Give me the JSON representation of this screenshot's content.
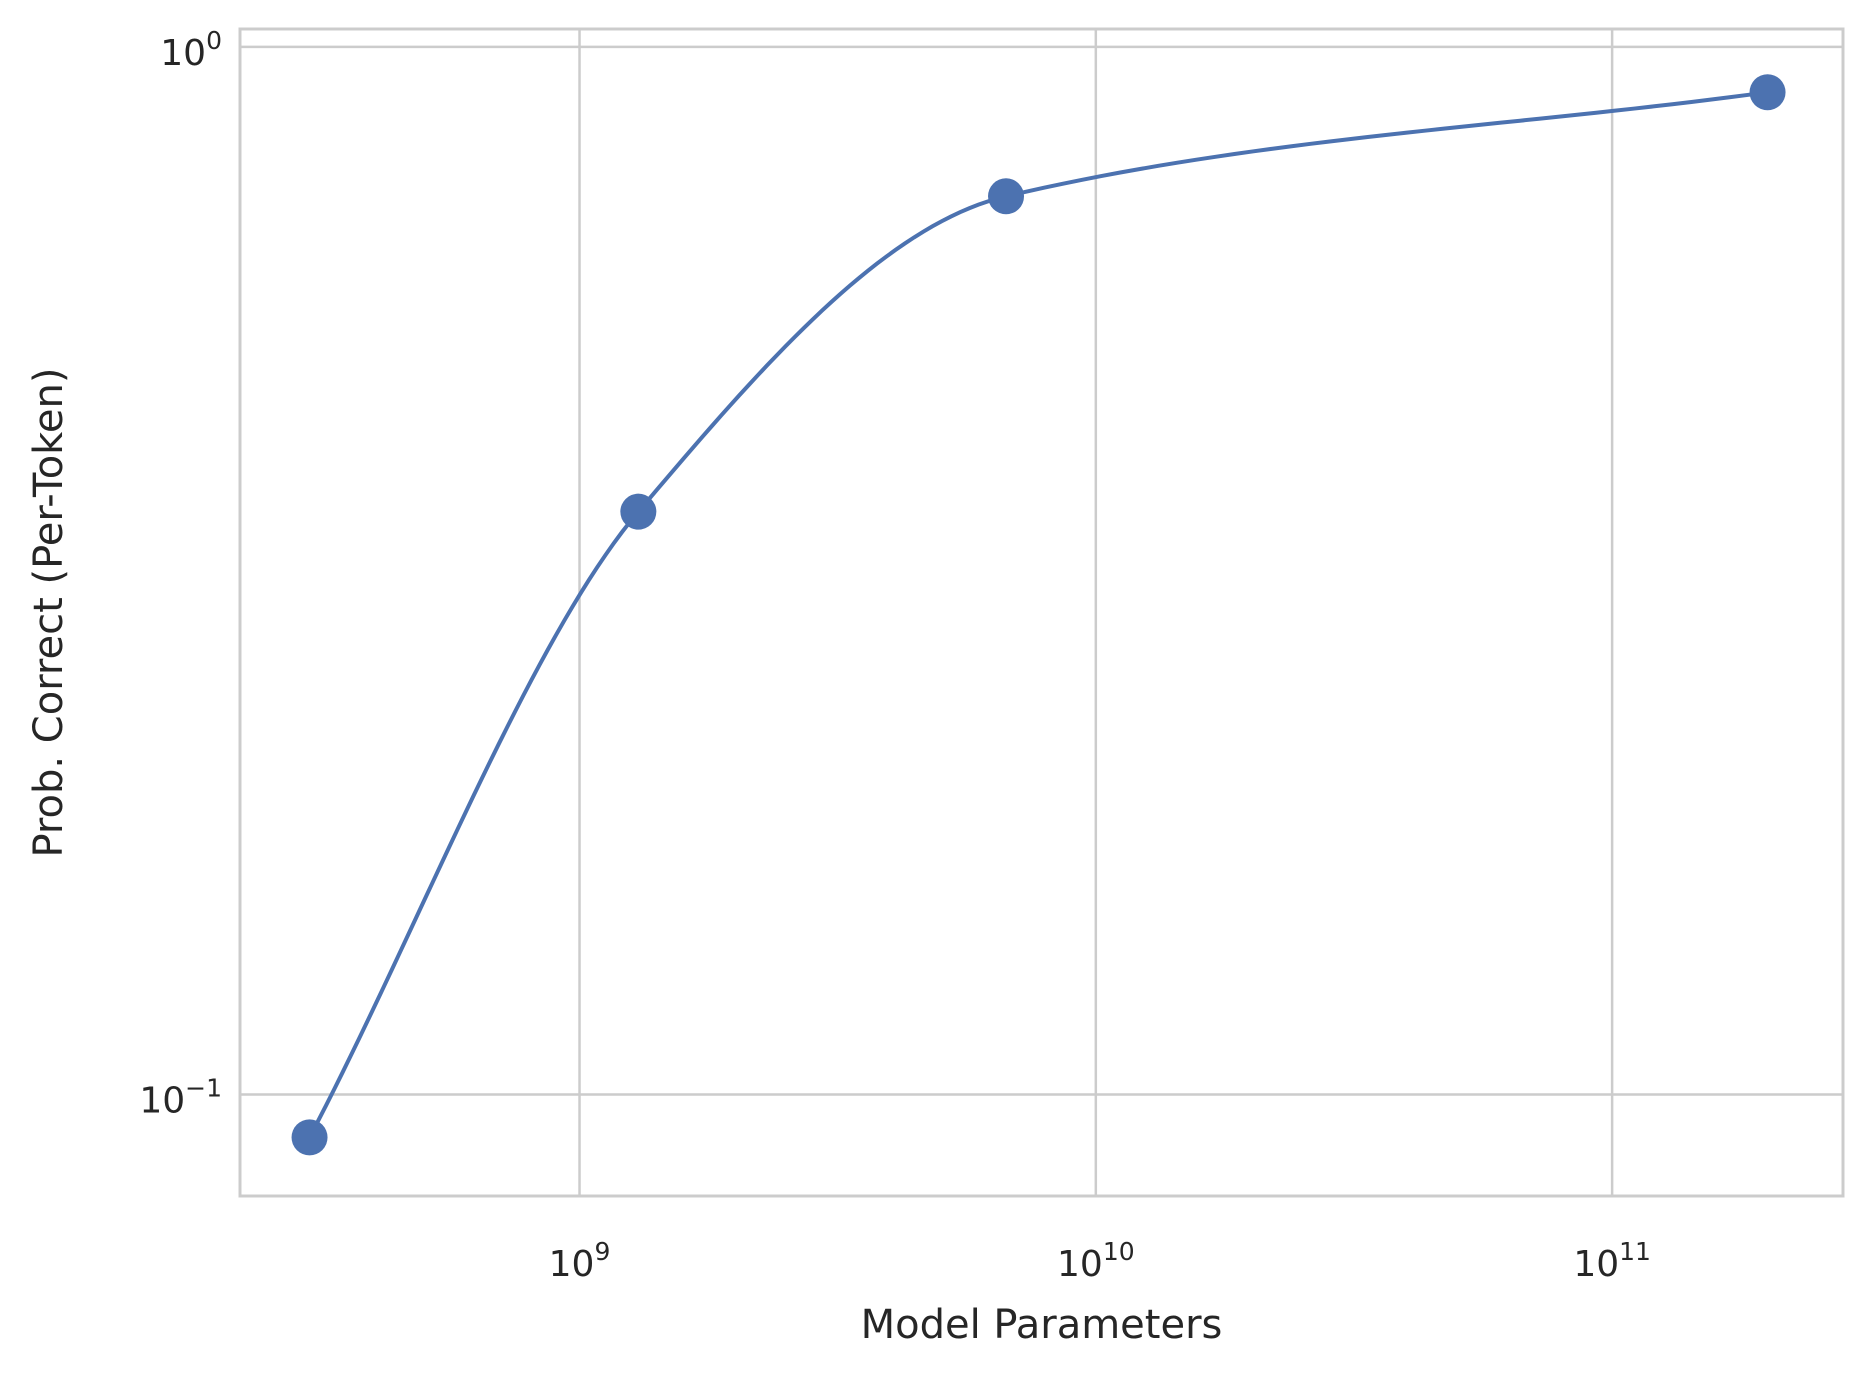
{
  "chart_data": {
    "type": "line",
    "title": "",
    "xlabel": "Model Parameters",
    "ylabel": "Prob. Correct (Per-Token)",
    "xscale": "log",
    "yscale": "log",
    "xlim": [
      220000000,
      280000000000
    ],
    "ylim": [
      0.08,
      1.04
    ],
    "grid": true,
    "x_ticks": [
      {
        "value": 1000000000,
        "base": "10",
        "exp": "9"
      },
      {
        "value": 10000000000,
        "base": "10",
        "exp": "10"
      },
      {
        "value": 100000000000,
        "base": "10",
        "exp": "11"
      }
    ],
    "y_ticks": [
      {
        "value": 0.1,
        "base": "10",
        "exp": "−1"
      },
      {
        "value": 1,
        "base": "10",
        "exp": "0"
      }
    ],
    "series": [
      {
        "color": "#4c72b0",
        "markers": true,
        "x": [
          300000000,
          1300000000,
          6700000000,
          200000000000
        ],
        "y": [
          0.091,
          0.36,
          0.72,
          0.905
        ]
      }
    ]
  }
}
